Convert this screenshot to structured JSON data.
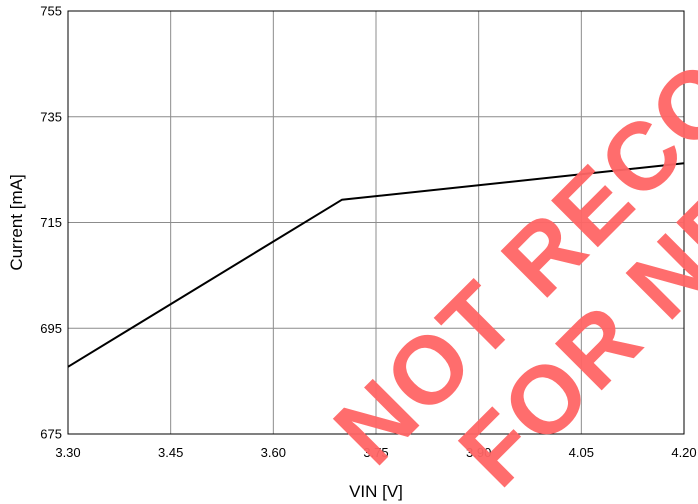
{
  "chart_data": {
    "type": "line",
    "title": "",
    "xlabel": "VIN [V]",
    "ylabel": "Current [mA]",
    "xlim": [
      3.3,
      4.2
    ],
    "ylim": [
      675,
      755
    ],
    "x_ticks": [
      "3.30",
      "3.45",
      "3.60",
      "3.75",
      "3.90",
      "4.05",
      "4.20"
    ],
    "y_ticks": [
      "675",
      "695",
      "715",
      "735",
      "755"
    ],
    "grid": true,
    "legend": "none",
    "series": [
      {
        "x": [
          3.3,
          3.7,
          4.2
        ],
        "y": [
          687.7,
          719.3,
          726.2
        ],
        "color": "#000000"
      }
    ]
  },
  "watermark": {
    "line1": "NOT RECOMMENDED",
    "line2": "FOR NEW DESIGN",
    "color": "#ff6666"
  }
}
